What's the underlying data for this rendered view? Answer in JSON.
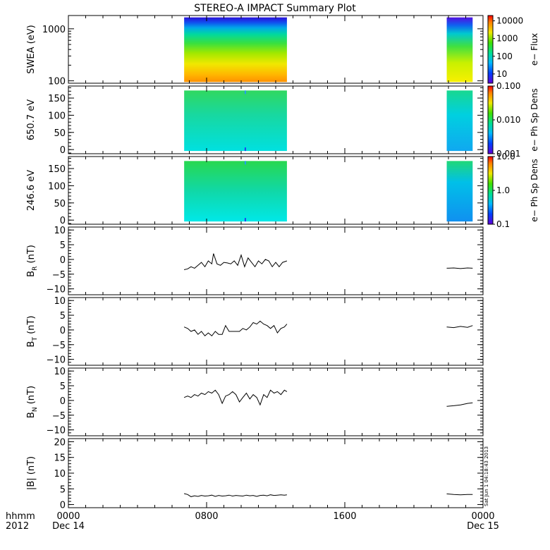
{
  "title": "STEREO-A IMPACT Summary Plot",
  "stamp": "Sat Jun 1 04:18:43 2013",
  "x_axis": {
    "row1_label": "hhmm",
    "row2_label": "2012",
    "ticks": [
      {
        "hour": 0,
        "time": "0000",
        "date": "Dec 14"
      },
      {
        "hour": 8,
        "time": "0800",
        "date": ""
      },
      {
        "hour": 16,
        "time": "1600",
        "date": ""
      },
      {
        "hour": 24,
        "time": "0000",
        "date": "Dec 15"
      }
    ],
    "range": [
      0,
      24
    ]
  },
  "chart_data": [
    {
      "type": "heatmap",
      "id": "swea",
      "ylabel": "SWEA (eV)",
      "yscale": "log",
      "ylim": [
        90,
        1800
      ],
      "yticks": [
        {
          "v": 100,
          "t": "100"
        },
        {
          "v": 1000,
          "t": "1000"
        }
      ],
      "colorbar": {
        "label": "e− Flux",
        "scale": "log",
        "lim": [
          3,
          20000
        ],
        "ticks": [
          {
            "v": 10,
            "t": "10"
          },
          {
            "v": 100,
            "t": "100"
          },
          {
            "v": 1000,
            "t": "1000"
          },
          {
            "v": 10000,
            "t": "10000"
          }
        ]
      },
      "segments": [
        {
          "x0": 6.7,
          "x1": 12.65
        },
        {
          "x0": 21.9,
          "x1": 23.4
        }
      ]
    },
    {
      "type": "heatmap",
      "id": "pad650",
      "ylabel": "650.7 eV",
      "yscale": "linear",
      "ylim": [
        -12,
        185
      ],
      "yticks": [
        {
          "v": 0,
          "t": "0"
        },
        {
          "v": 50,
          "t": "50"
        },
        {
          "v": 100,
          "t": "100"
        },
        {
          "v": 150,
          "t": "150"
        }
      ],
      "colorbar": {
        "label": "e− Ph Sp Dens",
        "scale": "log",
        "lim": [
          0.001,
          0.1
        ],
        "ticks": [
          {
            "v": 0.001,
            "t": "0.001"
          },
          {
            "v": 0.01,
            "t": "0.010"
          },
          {
            "v": 0.1,
            "t": "0.100"
          }
        ]
      },
      "segments": [
        {
          "x0": 6.7,
          "x1": 12.65
        },
        {
          "x0": 21.9,
          "x1": 23.4
        }
      ]
    },
    {
      "type": "heatmap",
      "id": "pad246",
      "ylabel": "246.6 eV",
      "yscale": "linear",
      "ylim": [
        -12,
        185
      ],
      "yticks": [
        {
          "v": 0,
          "t": "0"
        },
        {
          "v": 50,
          "t": "50"
        },
        {
          "v": 100,
          "t": "100"
        },
        {
          "v": 150,
          "t": "150"
        }
      ],
      "colorbar": {
        "label": "e− Ph Sp Dens",
        "scale": "log",
        "lim": [
          0.1,
          10
        ],
        "ticks": [
          {
            "v": 0.1,
            "t": "0.1"
          },
          {
            "v": 1,
            "t": "1.0"
          },
          {
            "v": 10,
            "t": "10.0"
          }
        ]
      },
      "segments": [
        {
          "x0": 6.7,
          "x1": 12.65
        },
        {
          "x0": 21.9,
          "x1": 23.4
        }
      ]
    },
    {
      "type": "line",
      "id": "br",
      "ylabel": "B",
      "ylabel_sub": "R",
      "ylabel_unit": " (nT)",
      "ylim": [
        -12,
        11
      ],
      "yticks": [
        {
          "v": -10,
          "t": "−10"
        },
        {
          "v": -5,
          "t": "−5"
        },
        {
          "v": 0,
          "t": "0"
        },
        {
          "v": 5,
          "t": "5"
        },
        {
          "v": 10,
          "t": "10"
        }
      ],
      "series": [
        {
          "x": [
            6.7,
            6.9,
            7.1,
            7.3,
            7.5,
            7.7,
            7.9,
            8.1,
            8.3,
            8.4,
            8.6,
            8.8,
            9.0,
            9.2,
            9.4,
            9.6,
            9.8,
            10.0,
            10.2,
            10.4,
            10.6,
            10.8,
            11.0,
            11.2,
            11.4,
            11.6,
            11.8,
            12.0,
            12.2,
            12.4,
            12.65
          ],
          "y": [
            -3.5,
            -3.2,
            -2.5,
            -3.0,
            -2.0,
            -1.0,
            -2.5,
            -0.5,
            -1.5,
            2.0,
            -1.5,
            -2.0,
            -1.0,
            -1.2,
            -1.5,
            -0.5,
            -2.0,
            1.5,
            -2.5,
            0.5,
            -1.0,
            -2.5,
            -0.5,
            -1.5,
            0.0,
            -0.5,
            -2.5,
            -1.0,
            -2.5,
            -1.0,
            -0.5
          ]
        },
        {
          "x": [
            21.9,
            22.3,
            22.7,
            23.1,
            23.4
          ],
          "y": [
            -3.0,
            -2.9,
            -3.1,
            -2.9,
            -3.0
          ]
        }
      ]
    },
    {
      "type": "line",
      "id": "bt",
      "ylabel": "B",
      "ylabel_sub": "T",
      "ylabel_unit": " (nT)",
      "ylim": [
        -12,
        11
      ],
      "yticks": [
        {
          "v": -10,
          "t": "−10"
        },
        {
          "v": -5,
          "t": "−5"
        },
        {
          "v": 0,
          "t": "0"
        },
        {
          "v": 5,
          "t": "5"
        },
        {
          "v": 10,
          "t": "10"
        }
      ],
      "series": [
        {
          "x": [
            6.7,
            6.9,
            7.1,
            7.3,
            7.5,
            7.7,
            7.9,
            8.1,
            8.3,
            8.5,
            8.7,
            8.9,
            9.1,
            9.3,
            9.5,
            9.7,
            9.9,
            10.1,
            10.3,
            10.5,
            10.7,
            10.9,
            11.1,
            11.3,
            11.5,
            11.7,
            11.9,
            12.1,
            12.3,
            12.5,
            12.65
          ],
          "y": [
            1.0,
            0.5,
            -0.5,
            0.0,
            -1.5,
            -0.5,
            -2.0,
            -1.0,
            -2.0,
            -0.5,
            -1.5,
            -1.5,
            1.5,
            -0.5,
            -0.5,
            -0.5,
            -0.5,
            0.5,
            0.0,
            1.0,
            2.5,
            2.0,
            3.0,
            2.0,
            1.5,
            0.5,
            1.5,
            -1.0,
            0.5,
            1.0,
            2.0
          ]
        },
        {
          "x": [
            21.9,
            22.3,
            22.7,
            23.1,
            23.4
          ],
          "y": [
            1.0,
            0.8,
            1.2,
            0.9,
            1.5
          ]
        }
      ]
    },
    {
      "type": "line",
      "id": "bn",
      "ylabel": "B",
      "ylabel_sub": "N",
      "ylabel_unit": " (nT)",
      "ylim": [
        -12,
        11
      ],
      "yticks": [
        {
          "v": -10,
          "t": "−10"
        },
        {
          "v": -5,
          "t": "−5"
        },
        {
          "v": 0,
          "t": "0"
        },
        {
          "v": 5,
          "t": "5"
        },
        {
          "v": 10,
          "t": "10"
        }
      ],
      "series": [
        {
          "x": [
            6.7,
            6.9,
            7.1,
            7.3,
            7.5,
            7.7,
            7.9,
            8.1,
            8.3,
            8.5,
            8.7,
            8.9,
            9.1,
            9.3,
            9.5,
            9.7,
            9.9,
            10.1,
            10.3,
            10.5,
            10.7,
            10.9,
            11.1,
            11.3,
            11.5,
            11.7,
            11.9,
            12.1,
            12.3,
            12.5,
            12.65
          ],
          "y": [
            1.0,
            1.5,
            1.0,
            2.0,
            1.5,
            2.5,
            2.0,
            3.0,
            2.5,
            3.5,
            2.0,
            -1.0,
            1.5,
            2.0,
            3.0,
            2.0,
            -0.5,
            1.0,
            2.5,
            0.5,
            2.0,
            1.0,
            -1.5,
            2.0,
            1.0,
            3.5,
            2.5,
            3.0,
            2.0,
            3.5,
            3.0
          ]
        },
        {
          "x": [
            21.9,
            22.3,
            22.7,
            23.1,
            23.4
          ],
          "y": [
            -2.0,
            -1.8,
            -1.5,
            -1.0,
            -0.8
          ]
        }
      ]
    },
    {
      "type": "line",
      "id": "bmag",
      "ylabel": "|B| (nT)",
      "ylim": [
        -1,
        21
      ],
      "yticks": [
        {
          "v": 0,
          "t": "0"
        },
        {
          "v": 5,
          "t": "5"
        },
        {
          "v": 10,
          "t": "10"
        },
        {
          "v": 15,
          "t": "15"
        },
        {
          "v": 20,
          "t": "20"
        }
      ],
      "series": [
        {
          "x": [
            6.7,
            6.9,
            7.1,
            7.3,
            7.5,
            7.7,
            7.9,
            8.1,
            8.3,
            8.5,
            8.7,
            8.9,
            9.1,
            9.3,
            9.5,
            9.7,
            9.9,
            10.1,
            10.3,
            10.5,
            10.7,
            10.9,
            11.1,
            11.3,
            11.5,
            11.7,
            11.9,
            12.1,
            12.3,
            12.5,
            12.65
          ],
          "y": [
            3.5,
            3.2,
            2.5,
            2.8,
            2.6,
            2.9,
            2.7,
            2.8,
            3.0,
            2.6,
            2.9,
            2.7,
            2.8,
            3.0,
            2.7,
            2.9,
            2.8,
            2.7,
            3.0,
            2.8,
            2.9,
            2.6,
            2.9,
            3.0,
            2.8,
            3.1,
            2.9,
            3.0,
            3.1,
            3.0,
            3.1
          ]
        },
        {
          "x": [
            21.9,
            22.3,
            22.7,
            23.1,
            23.4
          ],
          "y": [
            3.4,
            3.2,
            3.1,
            3.2,
            3.2
          ]
        }
      ]
    }
  ]
}
